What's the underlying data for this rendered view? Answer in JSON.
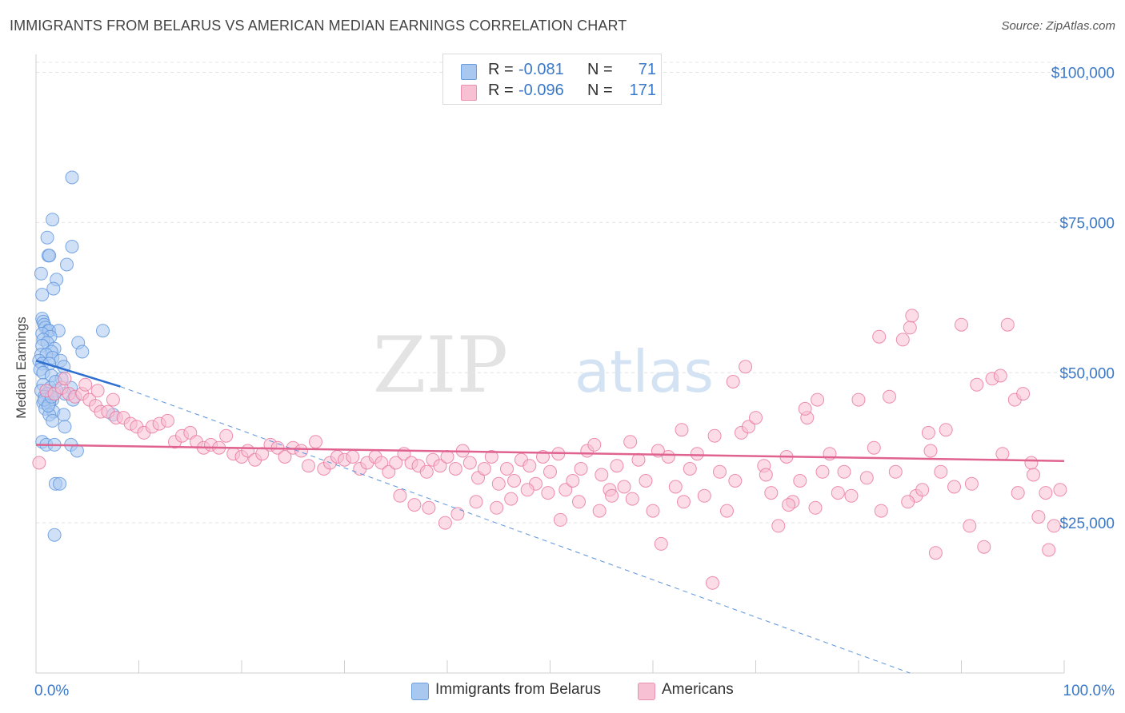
{
  "title": "IMMIGRANTS FROM BELARUS VS AMERICAN MEDIAN EARNINGS CORRELATION CHART",
  "source": "Source: ZipAtlas.com",
  "watermark": {
    "zip": "ZIP",
    "atlas": "atlas"
  },
  "legend": {
    "series": [
      {
        "r_label": "R =",
        "r_value": "-0.081",
        "n_label": "N =",
        "n_value": "71",
        "color": "#a9c8f0",
        "border": "#6a9fdb"
      },
      {
        "r_label": "R =",
        "r_value": "-0.096",
        "n_label": "N =",
        "n_value": "171",
        "color": "#f7c0d3",
        "border": "#ea8fb0"
      }
    ],
    "bottom": [
      {
        "label": "Immigrants from Belarus",
        "color": "#a9c8f0",
        "border": "#6a9fdb"
      },
      {
        "label": "Americans",
        "color": "#f7c0d3",
        "border": "#ea8fb0"
      }
    ]
  },
  "chart_data": {
    "type": "scatter",
    "title": "IMMIGRANTS FROM BELARUS VS AMERICAN MEDIAN EARNINGS CORRELATION CHART",
    "xlabel": "",
    "ylabel": "Median Earnings",
    "x_tick_labels": [
      "0.0%",
      "100.0%"
    ],
    "y_tick_labels": [
      "$100,000",
      "$75,000",
      "$50,000",
      "$25,000"
    ],
    "y_ticks": [
      100000,
      75000,
      50000,
      25000
    ],
    "xlim": [
      0,
      100
    ],
    "ylim": [
      0,
      103000
    ],
    "grid": true,
    "legend_position": "top-center",
    "series": [
      {
        "name": "Immigrants from Belarus",
        "color": "#5b93dd",
        "fill": "#a9c8f0",
        "trend": {
          "x": [
            0,
            8.2
          ],
          "y": [
            52000,
            47700
          ]
        },
        "trend_extended": {
          "x": [
            8.2,
            85
          ],
          "y": [
            47700,
            0
          ]
        },
        "points": [
          [
            3.5,
            82500
          ],
          [
            1.6,
            75500
          ],
          [
            1.1,
            72500
          ],
          [
            3.5,
            71000
          ],
          [
            1.2,
            69500
          ],
          [
            1.3,
            69500
          ],
          [
            3.0,
            68000
          ],
          [
            0.5,
            66500
          ],
          [
            2.0,
            65500
          ],
          [
            1.7,
            64000
          ],
          [
            0.6,
            63000
          ],
          [
            0.6,
            59000
          ],
          [
            0.7,
            58500
          ],
          [
            0.8,
            58000
          ],
          [
            0.9,
            57500
          ],
          [
            1.2,
            57000
          ],
          [
            1.3,
            57000
          ],
          [
            2.2,
            57000
          ],
          [
            6.5,
            57000
          ],
          [
            0.6,
            56500
          ],
          [
            1.4,
            56000
          ],
          [
            0.7,
            55500
          ],
          [
            1.1,
            55000
          ],
          [
            4.1,
            55000
          ],
          [
            0.6,
            54500
          ],
          [
            1.8,
            54000
          ],
          [
            1.5,
            53500
          ],
          [
            4.5,
            53500
          ],
          [
            0.5,
            53000
          ],
          [
            1.0,
            53000
          ],
          [
            1.6,
            52500
          ],
          [
            2.4,
            52000
          ],
          [
            0.3,
            52000
          ],
          [
            0.6,
            51500
          ],
          [
            1.3,
            51500
          ],
          [
            2.7,
            51000
          ],
          [
            0.4,
            50500
          ],
          [
            0.7,
            50000
          ],
          [
            1.5,
            49500
          ],
          [
            2.5,
            49000
          ],
          [
            0.7,
            48000
          ],
          [
            1.4,
            47500
          ],
          [
            3.4,
            47500
          ],
          [
            0.5,
            47000
          ],
          [
            1.1,
            46500
          ],
          [
            2.8,
            46500
          ],
          [
            0.8,
            46000
          ],
          [
            1.6,
            45500
          ],
          [
            3.6,
            45500
          ],
          [
            0.7,
            45000
          ],
          [
            1.3,
            45000
          ],
          [
            0.9,
            44000
          ],
          [
            1.7,
            43500
          ],
          [
            1.3,
            43000
          ],
          [
            2.7,
            43000
          ],
          [
            7.5,
            43000
          ],
          [
            1.6,
            42000
          ],
          [
            2.8,
            41000
          ],
          [
            0.6,
            38500
          ],
          [
            1.0,
            38000
          ],
          [
            1.8,
            38000
          ],
          [
            3.4,
            38000
          ],
          [
            4.0,
            37000
          ],
          [
            1.9,
            31500
          ],
          [
            2.3,
            31500
          ],
          [
            1.8,
            23000
          ],
          [
            0.8,
            45500
          ],
          [
            1.2,
            44500
          ],
          [
            2.0,
            47000
          ],
          [
            1.9,
            48500
          ],
          [
            1.5,
            46000
          ]
        ]
      },
      {
        "name": "Americans",
        "color": "#e8749b",
        "fill": "#f7c0d3",
        "trend": {
          "x": [
            0,
            100
          ],
          "y": [
            38000,
            35300
          ]
        },
        "points": [
          [
            0.3,
            35000
          ],
          [
            1.0,
            47000
          ],
          [
            1.8,
            46500
          ],
          [
            2.5,
            47500
          ],
          [
            3.2,
            46500
          ],
          [
            3.8,
            46000
          ],
          [
            4.5,
            46500
          ],
          [
            5.2,
            45500
          ],
          [
            5.8,
            44500
          ],
          [
            6.3,
            43500
          ],
          [
            7.0,
            43500
          ],
          [
            7.8,
            42500
          ],
          [
            8.5,
            42500
          ],
          [
            9.2,
            41500
          ],
          [
            9.8,
            41000
          ],
          [
            10.5,
            40000
          ],
          [
            11.3,
            41000
          ],
          [
            12.0,
            41500
          ],
          [
            12.8,
            42000
          ],
          [
            13.5,
            38500
          ],
          [
            14.2,
            39500
          ],
          [
            15.0,
            40000
          ],
          [
            15.6,
            38500
          ],
          [
            16.3,
            37500
          ],
          [
            17.0,
            38000
          ],
          [
            17.8,
            37500
          ],
          [
            18.5,
            39500
          ],
          [
            19.2,
            36500
          ],
          [
            20.0,
            36000
          ],
          [
            20.6,
            37000
          ],
          [
            21.3,
            35500
          ],
          [
            22.0,
            36500
          ],
          [
            22.8,
            38000
          ],
          [
            23.5,
            37500
          ],
          [
            24.2,
            36000
          ],
          [
            25.0,
            37500
          ],
          [
            25.8,
            37000
          ],
          [
            26.5,
            34500
          ],
          [
            27.2,
            38500
          ],
          [
            28.0,
            34000
          ],
          [
            28.6,
            35000
          ],
          [
            29.3,
            36000
          ],
          [
            30.0,
            35500
          ],
          [
            30.8,
            36000
          ],
          [
            31.5,
            34000
          ],
          [
            32.2,
            35000
          ],
          [
            33.0,
            36000
          ],
          [
            33.6,
            35000
          ],
          [
            34.3,
            33500
          ],
          [
            35.0,
            35000
          ],
          [
            35.8,
            36500
          ],
          [
            36.5,
            35000
          ],
          [
            37.2,
            34500
          ],
          [
            38.0,
            33500
          ],
          [
            38.6,
            35500
          ],
          [
            39.3,
            34500
          ],
          [
            40.0,
            36000
          ],
          [
            40.8,
            34000
          ],
          [
            41.5,
            37000
          ],
          [
            42.2,
            35000
          ],
          [
            43.0,
            32500
          ],
          [
            43.6,
            34000
          ],
          [
            44.3,
            36000
          ],
          [
            45.0,
            31500
          ],
          [
            45.8,
            34000
          ],
          [
            46.5,
            32000
          ],
          [
            47.2,
            35500
          ],
          [
            48.0,
            34500
          ],
          [
            48.6,
            31500
          ],
          [
            49.3,
            36000
          ],
          [
            50.0,
            33500
          ],
          [
            50.8,
            36500
          ],
          [
            51.5,
            30500
          ],
          [
            52.2,
            32000
          ],
          [
            53.0,
            34000
          ],
          [
            53.6,
            37000
          ],
          [
            54.3,
            38000
          ],
          [
            55.0,
            33000
          ],
          [
            55.8,
            30500
          ],
          [
            56.5,
            34500
          ],
          [
            57.2,
            31000
          ],
          [
            58.0,
            29000
          ],
          [
            58.6,
            35500
          ],
          [
            59.3,
            32000
          ],
          [
            60.0,
            27000
          ],
          [
            60.8,
            21500
          ],
          [
            61.5,
            36000
          ],
          [
            62.2,
            31000
          ],
          [
            63.0,
            28500
          ],
          [
            63.6,
            34000
          ],
          [
            64.3,
            36500
          ],
          [
            65.0,
            29500
          ],
          [
            65.8,
            15000
          ],
          [
            66.5,
            33500
          ],
          [
            67.2,
            27000
          ],
          [
            68.0,
            32000
          ],
          [
            68.6,
            40000
          ],
          [
            69.3,
            41000
          ],
          [
            70.0,
            42500
          ],
          [
            70.8,
            34500
          ],
          [
            71.5,
            30000
          ],
          [
            72.2,
            24500
          ],
          [
            73.0,
            36000
          ],
          [
            73.6,
            28500
          ],
          [
            74.3,
            32000
          ],
          [
            75.0,
            42500
          ],
          [
            75.8,
            27500
          ],
          [
            76.5,
            33500
          ],
          [
            77.2,
            36500
          ],
          [
            78.0,
            30000
          ],
          [
            78.6,
            33500
          ],
          [
            79.3,
            29500
          ],
          [
            80.0,
            45500
          ],
          [
            80.8,
            32500
          ],
          [
            81.5,
            37500
          ],
          [
            82.2,
            27000
          ],
          [
            83.0,
            46000
          ],
          [
            83.6,
            33500
          ],
          [
            84.3,
            55500
          ],
          [
            85.0,
            57500
          ],
          [
            85.6,
            29500
          ],
          [
            86.2,
            30500
          ],
          [
            87.0,
            37000
          ],
          [
            88.5,
            40500
          ],
          [
            89.3,
            31000
          ],
          [
            90.0,
            58000
          ],
          [
            90.8,
            24500
          ],
          [
            91.5,
            48000
          ],
          [
            92.2,
            21000
          ],
          [
            93.0,
            49000
          ],
          [
            93.8,
            49500
          ],
          [
            94.5,
            58000
          ],
          [
            95.2,
            45500
          ],
          [
            96.0,
            46500
          ],
          [
            96.8,
            35000
          ],
          [
            97.5,
            26000
          ],
          [
            98.2,
            30000
          ],
          [
            99.0,
            24500
          ],
          [
            99.6,
            30500
          ],
          [
            82.0,
            56000
          ],
          [
            84.8,
            28500
          ],
          [
            86.8,
            40000
          ],
          [
            88.0,
            33500
          ],
          [
            91.0,
            31500
          ],
          [
            94.0,
            36500
          ],
          [
            95.5,
            30000
          ],
          [
            97.0,
            33000
          ],
          [
            98.5,
            20500
          ],
          [
            87.5,
            20000
          ],
          [
            85.2,
            59500
          ],
          [
            76.0,
            45500
          ],
          [
            74.8,
            44000
          ],
          [
            73.2,
            28000
          ],
          [
            71.0,
            33000
          ],
          [
            69.0,
            51000
          ],
          [
            67.8,
            48500
          ],
          [
            66.0,
            39500
          ],
          [
            62.8,
            40500
          ],
          [
            60.5,
            37000
          ],
          [
            57.8,
            38500
          ],
          [
            56.0,
            29500
          ],
          [
            54.8,
            27000
          ],
          [
            52.8,
            28500
          ],
          [
            51.0,
            25500
          ],
          [
            49.8,
            30000
          ],
          [
            47.8,
            30500
          ],
          [
            46.2,
            29000
          ],
          [
            44.8,
            27500
          ],
          [
            42.8,
            28500
          ],
          [
            41.0,
            26500
          ],
          [
            39.8,
            25000
          ],
          [
            38.2,
            27500
          ],
          [
            36.8,
            28000
          ],
          [
            35.4,
            29500
          ],
          [
            2.8,
            49000
          ],
          [
            4.8,
            48000
          ],
          [
            6.0,
            47000
          ],
          [
            7.5,
            45500
          ]
        ]
      }
    ]
  }
}
